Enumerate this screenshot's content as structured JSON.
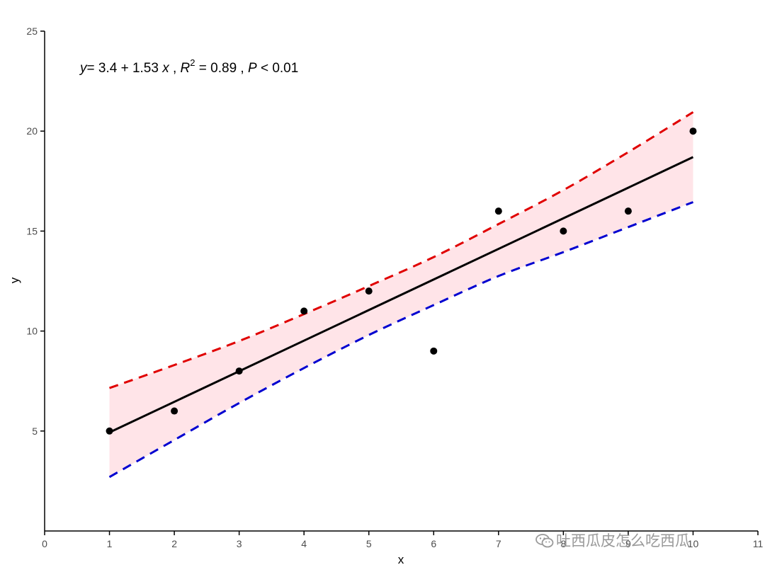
{
  "chart_data": {
    "type": "scatter",
    "xlabel": "x",
    "ylabel": "y",
    "xlim": [
      0,
      11
    ],
    "ylim": [
      0,
      25
    ],
    "x_ticks": [
      0,
      1,
      2,
      3,
      4,
      5,
      6,
      7,
      8,
      9,
      10,
      11
    ],
    "y_ticks": [
      5,
      10,
      15,
      20,
      25
    ],
    "grid": false,
    "points": {
      "x": [
        1,
        2,
        3,
        4,
        5,
        6,
        7,
        8,
        9,
        10
      ],
      "y": [
        5,
        6,
        8,
        11,
        12,
        9,
        16,
        15,
        16,
        20
      ]
    },
    "fit_line": {
      "intercept": 3.4,
      "slope": 1.53,
      "x_range": [
        1,
        10
      ]
    },
    "confidence_band": {
      "x": [
        1,
        2,
        3,
        4,
        5,
        6,
        7,
        8,
        9,
        10
      ],
      "upper": [
        7.15,
        8.3,
        9.5,
        10.85,
        12.25,
        13.7,
        15.35,
        17.05,
        18.95,
        20.95
      ],
      "lower": [
        2.7,
        4.55,
        6.4,
        8.15,
        9.8,
        11.3,
        12.75,
        13.95,
        15.2,
        16.45
      ],
      "upper_color": "#e00000",
      "lower_color": "#0000d0",
      "fill_color": "#ffe4e8"
    },
    "annotation": {
      "y_var": "y",
      "equation": "= 3.4 + 1.53 ",
      "x_var": "x",
      "sep1": " , ",
      "r_var": "R",
      "r_sup": "2",
      "r_value": " = 0.89",
      "sep2": " , ",
      "p_var": "P",
      "p_value": " < 0.01"
    },
    "colors": {
      "points": "#000000",
      "fit_line": "#000000",
      "axis": "#000000"
    }
  },
  "watermark": {
    "text": "吐西瓜皮怎么吃西瓜",
    "icon": "wechat-icon"
  }
}
